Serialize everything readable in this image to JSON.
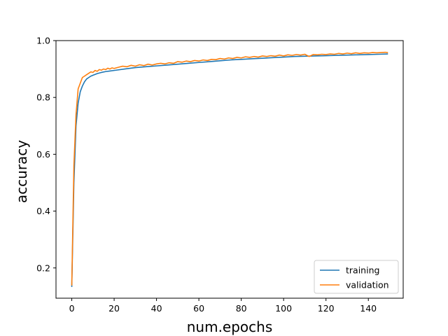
{
  "chart_data": {
    "type": "line",
    "title": "",
    "xlabel": "num.epochs",
    "ylabel": "accuracy",
    "xlim": [
      -7.45,
      156.45
    ],
    "ylim": [
      0.0935,
      1.0
    ],
    "xticks": [
      0,
      20,
      40,
      60,
      80,
      100,
      120,
      140
    ],
    "yticks": [
      0.2,
      0.4,
      0.6,
      0.8,
      1.0
    ],
    "xtick_labels": [
      "0",
      "20",
      "40",
      "60",
      "80",
      "100",
      "120",
      "140"
    ],
    "ytick_labels": [
      "0.2",
      "0.4",
      "0.6",
      "0.8",
      "1.0"
    ],
    "grid": false,
    "legend_position": "lower-right",
    "series": [
      {
        "name": "training",
        "color": "#1f77b4",
        "x": [
          0,
          1,
          2,
          3,
          4,
          5,
          6,
          7,
          8,
          9,
          10,
          12,
          14,
          16,
          18,
          20,
          25,
          30,
          35,
          40,
          45,
          50,
          55,
          60,
          65,
          70,
          75,
          80,
          85,
          90,
          95,
          100,
          105,
          110,
          115,
          120,
          125,
          130,
          135,
          140,
          145,
          149
        ],
        "y": [
          0.135,
          0.5,
          0.7,
          0.78,
          0.82,
          0.84,
          0.855,
          0.865,
          0.87,
          0.875,
          0.878,
          0.884,
          0.888,
          0.891,
          0.893,
          0.895,
          0.9,
          0.905,
          0.908,
          0.911,
          0.914,
          0.917,
          0.92,
          0.923,
          0.926,
          0.929,
          0.932,
          0.934,
          0.936,
          0.938,
          0.94,
          0.942,
          0.944,
          0.945,
          0.946,
          0.947,
          0.948,
          0.949,
          0.95,
          0.951,
          0.952,
          0.953
        ]
      },
      {
        "name": "validation",
        "color": "#ff7f0e",
        "x": [
          0,
          1,
          2,
          3,
          4,
          5,
          6,
          7,
          8,
          9,
          10,
          11,
          12,
          13,
          14,
          15,
          16,
          17,
          18,
          19,
          20,
          22,
          24,
          26,
          28,
          30,
          32,
          34,
          36,
          38,
          40,
          42,
          44,
          46,
          48,
          50,
          52,
          54,
          56,
          58,
          60,
          62,
          64,
          66,
          68,
          70,
          72,
          74,
          76,
          78,
          80,
          82,
          84,
          86,
          88,
          90,
          92,
          94,
          96,
          98,
          100,
          102,
          104,
          106,
          108,
          110,
          112,
          114,
          116,
          118,
          120,
          122,
          124,
          126,
          128,
          130,
          132,
          134,
          136,
          138,
          140,
          142,
          144,
          146,
          148,
          149
        ],
        "y": [
          0.14,
          0.56,
          0.74,
          0.83,
          0.85,
          0.87,
          0.875,
          0.88,
          0.885,
          0.89,
          0.888,
          0.895,
          0.892,
          0.898,
          0.896,
          0.9,
          0.898,
          0.903,
          0.9,
          0.904,
          0.902,
          0.906,
          0.91,
          0.908,
          0.913,
          0.91,
          0.915,
          0.912,
          0.917,
          0.914,
          0.918,
          0.92,
          0.918,
          0.922,
          0.92,
          0.926,
          0.924,
          0.928,
          0.926,
          0.93,
          0.928,
          0.932,
          0.93,
          0.934,
          0.933,
          0.937,
          0.935,
          0.939,
          0.937,
          0.941,
          0.939,
          0.943,
          0.941,
          0.944,
          0.942,
          0.946,
          0.944,
          0.947,
          0.945,
          0.949,
          0.946,
          0.95,
          0.948,
          0.951,
          0.949,
          0.952,
          0.944,
          0.951,
          0.95,
          0.952,
          0.951,
          0.953,
          0.952,
          0.955,
          0.953,
          0.956,
          0.954,
          0.957,
          0.955,
          0.957,
          0.956,
          0.958,
          0.957,
          0.958,
          0.959,
          0.958
        ]
      }
    ]
  }
}
